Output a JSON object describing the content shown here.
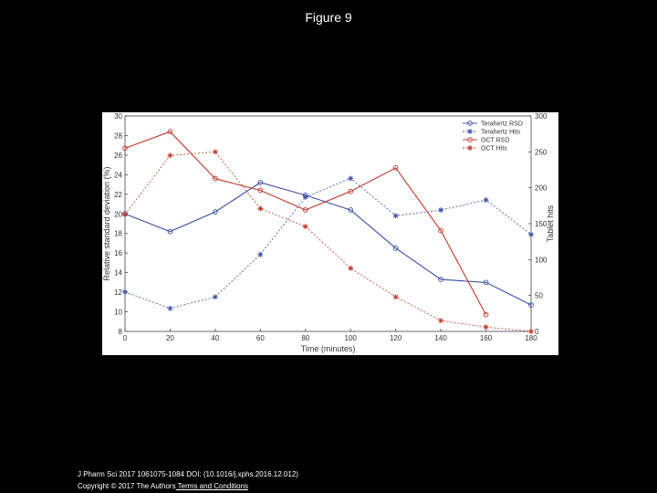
{
  "page": {
    "title": "Figure 9",
    "citation": "J Pharm Sci 2017 1061075-1084 DOI: (10.1016/j.xphs.2016.12.012)",
    "copyright_prefix": "Copyright © 2017 The Authors",
    "copyright_link": " Terms and Conditions"
  },
  "colors": {
    "background": "#000000",
    "blue": "#3b4fa0",
    "red": "#c0392b"
  },
  "chart_data": {
    "type": "line",
    "title": "",
    "xlabel": "Time (minutes)",
    "ylabel": "Relative standard deviation (%)",
    "y2label": "Tablet hits",
    "xlim": [
      0,
      180
    ],
    "ylim": [
      8,
      30
    ],
    "y2lim": [
      0,
      300
    ],
    "x_ticks": [
      0,
      20,
      40,
      60,
      80,
      100,
      120,
      140,
      160,
      180
    ],
    "y_ticks": [
      8,
      10,
      12,
      14,
      16,
      18,
      20,
      22,
      24,
      26,
      28,
      30
    ],
    "y2_ticks": [
      0,
      50,
      100,
      150,
      200,
      250,
      300
    ],
    "legend_position": "top-right",
    "grid": false,
    "series": [
      {
        "name": "Terahertz RSD",
        "axis": "left",
        "color": "#3b4fa0",
        "marker": "circle",
        "dash": "solid",
        "x": [
          0,
          20,
          40,
          60,
          80,
          100,
          120,
          140,
          160,
          180
        ],
        "values": [
          20.0,
          18.2,
          20.2,
          23.2,
          21.9,
          20.4,
          16.5,
          13.3,
          13.0,
          10.7
        ]
      },
      {
        "name": "Terahertz Hits",
        "axis": "right",
        "color": "#3b4fa0",
        "marker": "star",
        "dash": "dashed",
        "x": [
          0,
          20,
          40,
          60,
          80,
          100,
          120,
          140,
          160,
          180
        ],
        "values": [
          55,
          32,
          48,
          107,
          187,
          213,
          161,
          169,
          183,
          135
        ]
      },
      {
        "name": "OCT RSD",
        "axis": "left",
        "color": "#c0392b",
        "marker": "circle",
        "dash": "solid",
        "x": [
          0,
          20,
          40,
          60,
          80,
          100,
          120,
          140,
          160
        ],
        "values": [
          26.7,
          28.4,
          23.6,
          22.4,
          20.4,
          22.3,
          24.7,
          18.3,
          9.7
        ]
      },
      {
        "name": "OCT Hits",
        "axis": "right",
        "color": "#c0392b",
        "marker": "star",
        "dash": "dashed",
        "x": [
          0,
          20,
          40,
          60,
          80,
          100,
          120,
          140,
          160,
          180
        ],
        "values": [
          163,
          245,
          250,
          171,
          146,
          88,
          48,
          15,
          6,
          0
        ]
      }
    ]
  }
}
